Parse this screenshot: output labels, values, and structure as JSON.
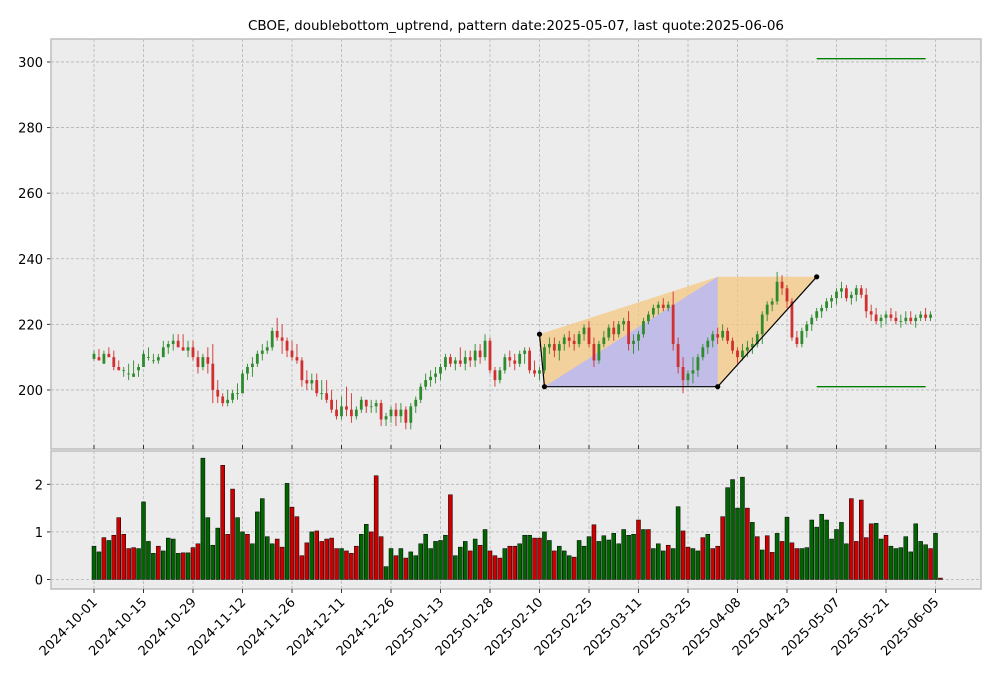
{
  "chart_data": {
    "title": "CBOE, doublebottom_uptrend, pattern date:2025-05-07, last quote:2025-06-06",
    "type": "candlestick",
    "grid": true,
    "colors": {
      "up": "#2e8b2e",
      "down": "#d03030",
      "background": "#ececec",
      "grid": "#b4b4b4",
      "target_line": "#008000",
      "pattern_line": "#000000",
      "fill_orange": "#f5c883",
      "fill_blue": "#b9b9f6",
      "vol_up": "#006400",
      "vol_down": "#cc0000"
    },
    "price_axis": {
      "range": [
        182,
        307
      ],
      "ticks": [
        200,
        220,
        240,
        260,
        280,
        300
      ]
    },
    "volume_axis": {
      "range": [
        -0.2,
        2.7
      ],
      "ticks": [
        0,
        1,
        2
      ]
    },
    "date_ticks": [
      "2024-10-01",
      "2024-10-15",
      "2024-10-29",
      "2024-11-12",
      "2024-11-26",
      "2024-12-11",
      "2024-12-26",
      "2025-01-13",
      "2025-01-28",
      "2025-02-10",
      "2025-02-25",
      "2025-03-11",
      "2025-03-25",
      "2025-04-08",
      "2025-04-23",
      "2025-05-07",
      "2025-05-21",
      "2025-06-05"
    ],
    "date_tick_index": [
      0,
      10,
      20,
      30,
      40,
      50,
      60,
      70,
      80,
      90,
      100,
      110,
      120,
      130,
      140,
      150,
      160,
      170
    ],
    "ohlc": [
      [
        209.5,
        212,
        209,
        211
      ],
      [
        210,
        212.5,
        209,
        209
      ],
      [
        208,
        212,
        208,
        211
      ],
      [
        211,
        213,
        210,
        210
      ],
      [
        210,
        212,
        206,
        207
      ],
      [
        207,
        209,
        206,
        206
      ],
      [
        206,
        207,
        204,
        206
      ],
      [
        205,
        208,
        203,
        205
      ],
      [
        204,
        209,
        204,
        205
      ],
      [
        206,
        208,
        204,
        207
      ],
      [
        207,
        212,
        207,
        211
      ],
      [
        210,
        213,
        209,
        210
      ],
      [
        209,
        211,
        208,
        209
      ],
      [
        209,
        211,
        208,
        210
      ],
      [
        210,
        215,
        210,
        213
      ],
      [
        213,
        215,
        211,
        214
      ],
      [
        214,
        217,
        212,
        215
      ],
      [
        215,
        217,
        213,
        213
      ],
      [
        213,
        217,
        212,
        212
      ],
      [
        212,
        215,
        210,
        213
      ],
      [
        213,
        215,
        209,
        210
      ],
      [
        210,
        212,
        205,
        207
      ],
      [
        207,
        211,
        206,
        210
      ],
      [
        210,
        213,
        205,
        208
      ],
      [
        208,
        214,
        196,
        200
      ],
      [
        200,
        203,
        196,
        198
      ],
      [
        198,
        199,
        195,
        196
      ],
      [
        196,
        200,
        195,
        197
      ],
      [
        197,
        200,
        196,
        199
      ],
      [
        199,
        202,
        197,
        199
      ],
      [
        199,
        206,
        199,
        205
      ],
      [
        205,
        208,
        203,
        207
      ],
      [
        207,
        210,
        204,
        208
      ],
      [
        208,
        212,
        207,
        211
      ],
      [
        211,
        214,
        209,
        212
      ],
      [
        212,
        215,
        211,
        213
      ],
      [
        213,
        219,
        212,
        218
      ],
      [
        218,
        222,
        215,
        216
      ],
      [
        216,
        220,
        211,
        215
      ],
      [
        215,
        216,
        210,
        212
      ],
      [
        212,
        215,
        209,
        210
      ],
      [
        210,
        214,
        208,
        209
      ],
      [
        209,
        210,
        201,
        203
      ],
      [
        203,
        206,
        200,
        202
      ],
      [
        202,
        205,
        200,
        203
      ],
      [
        203,
        205,
        198,
        199
      ],
      [
        199,
        203,
        197,
        199
      ],
      [
        199,
        203,
        196,
        197
      ],
      [
        197,
        200,
        193,
        194
      ],
      [
        194,
        197,
        191,
        192
      ],
      [
        192,
        198,
        191,
        195
      ],
      [
        195,
        201,
        192,
        194
      ],
      [
        194,
        199,
        190,
        192
      ],
      [
        192,
        195,
        191,
        194
      ],
      [
        194,
        198,
        193,
        197
      ],
      [
        197,
        197,
        193,
        195
      ],
      [
        195,
        197,
        193,
        195
      ],
      [
        195,
        197,
        193,
        196
      ],
      [
        196,
        197,
        189,
        191
      ],
      [
        191,
        193,
        189,
        192
      ],
      [
        192,
        195,
        190,
        194
      ],
      [
        194,
        196,
        189,
        192
      ],
      [
        192,
        196,
        190,
        194
      ],
      [
        194,
        195,
        188,
        190
      ],
      [
        190,
        196,
        188,
        195
      ],
      [
        195,
        198,
        193,
        197
      ],
      [
        197,
        202,
        196,
        201
      ],
      [
        201,
        205,
        200,
        203
      ],
      [
        203,
        206,
        201,
        204
      ],
      [
        204,
        207,
        202,
        205
      ],
      [
        205,
        208,
        203,
        207
      ],
      [
        207,
        211,
        206,
        210
      ],
      [
        210,
        211,
        207,
        208
      ],
      [
        208,
        210,
        206,
        209
      ],
      [
        209,
        213,
        207,
        208
      ],
      [
        208,
        212,
        206,
        210
      ],
      [
        210,
        212,
        207,
        209
      ],
      [
        209,
        214,
        207,
        212
      ],
      [
        212,
        214,
        208,
        210
      ],
      [
        210,
        217,
        209,
        215
      ],
      [
        215,
        216,
        205,
        206
      ],
      [
        206,
        207,
        201,
        203
      ],
      [
        203,
        207,
        202,
        206
      ],
      [
        206,
        211,
        205,
        210
      ],
      [
        210,
        212,
        207,
        209
      ],
      [
        209,
        211,
        206,
        208
      ],
      [
        208,
        212,
        207,
        211
      ],
      [
        211,
        213,
        208,
        212
      ],
      [
        212,
        213,
        205,
        206
      ],
      [
        206,
        209,
        204,
        205
      ],
      [
        205,
        207,
        203,
        206
      ],
      [
        206,
        214,
        205,
        213
      ],
      [
        213,
        216,
        211,
        214
      ],
      [
        214,
        216,
        210,
        212
      ],
      [
        212,
        215,
        209,
        214
      ],
      [
        214,
        217,
        212,
        216
      ],
      [
        216,
        218,
        213,
        215
      ],
      [
        215,
        217,
        212,
        214
      ],
      [
        214,
        218,
        213,
        217
      ],
      [
        217,
        220,
        215,
        219
      ],
      [
        219,
        221,
        213,
        214
      ],
      [
        214,
        216,
        207,
        209
      ],
      [
        209,
        215,
        208,
        214
      ],
      [
        214,
        218,
        213,
        216
      ],
      [
        216,
        220,
        215,
        219
      ],
      [
        219,
        221,
        215,
        217
      ],
      [
        217,
        221,
        216,
        220
      ],
      [
        220,
        222,
        218,
        221
      ],
      [
        221,
        224,
        212,
        214
      ],
      [
        214,
        217,
        211,
        215
      ],
      [
        215,
        218,
        212,
        217
      ],
      [
        217,
        222,
        216,
        221
      ],
      [
        221,
        224,
        220,
        223
      ],
      [
        223,
        226,
        222,
        225
      ],
      [
        225,
        227,
        223,
        226
      ],
      [
        226,
        228,
        224,
        225
      ],
      [
        225,
        227,
        224,
        226
      ],
      [
        226,
        230,
        212,
        214
      ],
      [
        214,
        216,
        205,
        207
      ],
      [
        207,
        210,
        199,
        203
      ],
      [
        203,
        206,
        201,
        205
      ],
      [
        205,
        210,
        202,
        206
      ],
      [
        206,
        211,
        204,
        210
      ],
      [
        210,
        214,
        209,
        213
      ],
      [
        213,
        216,
        211,
        215
      ],
      [
        215,
        218,
        213,
        217
      ],
      [
        217,
        219,
        214,
        216
      ],
      [
        216,
        220,
        215,
        218
      ],
      [
        218,
        219,
        214,
        215
      ],
      [
        215,
        216,
        211,
        212
      ],
      [
        212,
        213,
        208,
        210
      ],
      [
        210,
        214,
        209,
        212
      ],
      [
        212,
        215,
        210,
        213
      ],
      [
        213,
        216,
        211,
        214
      ],
      [
        214,
        218,
        213,
        217
      ],
      [
        217,
        224,
        214,
        223
      ],
      [
        223,
        227,
        221,
        226
      ],
      [
        226,
        228,
        224,
        227
      ],
      [
        227,
        236,
        226,
        233
      ],
      [
        233,
        235,
        229,
        231
      ],
      [
        231,
        232,
        225,
        227
      ],
      [
        227,
        228,
        215,
        216
      ],
      [
        216,
        218,
        213,
        214
      ],
      [
        214,
        219,
        213,
        218
      ],
      [
        218,
        221,
        216,
        220
      ],
      [
        220,
        223,
        218,
        222
      ],
      [
        222,
        225,
        221,
        224
      ],
      [
        224,
        226,
        222,
        225
      ],
      [
        225,
        228,
        224,
        227
      ],
      [
        227,
        229,
        225,
        228
      ],
      [
        228,
        231,
        226,
        230
      ],
      [
        230,
        233,
        228,
        231
      ],
      [
        231,
        232,
        227,
        228
      ],
      [
        228,
        230,
        226,
        229
      ],
      [
        229,
        232,
        227,
        231
      ],
      [
        231,
        232,
        228,
        229
      ],
      [
        229,
        231,
        222,
        224
      ],
      [
        224,
        226,
        221,
        223
      ],
      [
        223,
        225,
        220,
        221
      ],
      [
        221,
        223,
        219,
        222
      ],
      [
        222,
        224,
        220,
        223
      ],
      [
        223,
        225,
        221,
        222
      ],
      [
        222,
        224,
        220,
        221
      ],
      [
        221,
        223,
        219,
        221
      ],
      [
        221,
        224,
        220,
        222
      ],
      [
        222,
        224,
        220,
        221
      ],
      [
        221,
        223,
        219,
        222
      ],
      [
        222,
        224,
        221,
        223
      ],
      [
        223,
        225,
        221,
        222
      ],
      [
        222,
        224,
        221,
        223
      ]
    ],
    "volume": [
      0.7,
      0.58,
      0.88,
      0.82,
      0.93,
      1.3,
      0.95,
      0.65,
      0.67,
      0.65,
      1.63,
      0.8,
      0.55,
      0.7,
      0.6,
      0.87,
      0.85,
      0.55,
      0.56,
      0.56,
      0.67,
      0.75,
      2.55,
      1.3,
      0.72,
      1.08,
      2.4,
      0.95,
      1.9,
      1.3,
      1.0,
      0.95,
      0.75,
      1.42,
      1.7,
      0.9,
      0.75,
      0.85,
      0.68,
      2.02,
      1.52,
      1.32,
      0.5,
      0.77,
      1.0,
      1.02,
      0.8,
      0.85,
      0.87,
      0.65,
      0.65,
      0.6,
      0.55,
      0.7,
      0.95,
      1.16,
      1.0,
      2.18,
      0.9,
      0.27,
      0.65,
      0.5,
      0.65,
      0.45,
      0.58,
      0.5,
      0.75,
      0.95,
      0.65,
      0.8,
      0.82,
      0.93,
      1.78,
      0.5,
      0.68,
      0.8,
      0.6,
      0.85,
      0.72,
      1.05,
      0.6,
      0.5,
      0.45,
      0.65,
      0.7,
      0.7,
      0.75,
      0.93,
      0.93,
      0.87,
      0.87,
      1.0,
      0.82,
      0.6,
      0.7,
      0.6,
      0.5,
      0.47,
      0.82,
      0.7,
      0.9,
      1.15,
      0.8,
      0.92,
      0.83,
      0.97,
      0.75,
      1.05,
      0.93,
      0.95,
      1.25,
      1.05,
      1.05,
      0.65,
      0.75,
      0.6,
      0.72,
      0.65,
      1.53,
      1.02,
      0.68,
      0.65,
      0.6,
      0.88,
      0.95,
      0.65,
      0.7,
      1.32,
      1.93,
      2.1,
      1.5,
      2.15,
      1.5,
      1.2,
      0.9,
      0.62,
      0.92,
      0.57,
      0.97,
      0.8,
      1.31,
      0.77,
      0.65,
      0.65,
      0.67,
      1.25,
      1.1,
      1.37,
      1.25,
      0.85,
      1.05,
      1.2,
      0.75,
      1.7,
      0.8,
      1.67,
      0.88,
      1.17,
      1.18,
      0.85,
      0.93,
      0.7,
      0.65,
      0.67,
      0.9,
      0.58,
      1.17,
      0.8,
      0.73,
      0.65,
      0.97,
      0.03
    ],
    "volume_up": [
      true,
      true,
      false,
      true,
      false,
      false,
      false,
      false,
      false,
      true,
      true,
      true,
      true,
      false,
      true,
      true,
      true,
      true,
      false,
      true,
      false,
      false,
      true,
      true,
      true,
      true,
      false,
      false,
      false,
      true,
      true,
      false,
      true,
      true,
      true,
      true,
      true,
      false,
      false,
      true,
      false,
      false,
      false,
      false,
      true,
      false,
      false,
      false,
      false,
      false,
      true,
      false,
      false,
      false,
      true,
      true,
      false,
      false,
      false,
      true,
      true,
      false,
      true,
      false,
      true,
      true,
      true,
      true,
      true,
      true,
      true,
      true,
      false,
      true,
      true,
      true,
      false,
      true,
      false,
      true,
      false,
      false,
      false,
      true,
      false,
      false,
      true,
      true,
      true,
      false,
      false,
      true,
      true,
      false,
      true,
      true,
      true,
      false,
      true,
      true,
      true,
      false,
      true,
      true,
      true,
      true,
      true,
      true,
      true,
      true,
      false,
      true,
      false,
      true,
      true,
      true,
      false,
      true,
      true,
      false,
      false,
      true,
      true,
      false,
      true,
      false,
      false,
      false,
      true,
      true,
      true,
      true,
      false,
      true,
      false,
      true,
      false,
      false,
      true,
      false,
      true,
      false,
      false,
      true,
      true,
      true,
      true,
      true,
      true,
      true,
      true,
      true,
      true,
      false,
      false,
      false,
      false,
      false,
      true,
      true,
      false,
      true,
      true,
      true,
      true,
      true,
      true,
      true,
      true,
      false,
      true,
      false,
      true,
      true
    ],
    "pattern_points": [
      [
        90,
        217
      ],
      [
        91,
        201
      ],
      [
        126,
        201
      ],
      [
        146,
        234.5
      ]
    ],
    "fill_orange": [
      [
        90,
        217
      ],
      [
        126,
        234.5
      ],
      [
        146,
        234.5
      ],
      [
        126,
        201
      ],
      [
        91,
        201
      ]
    ],
    "fill_blue": [
      [
        91,
        201
      ],
      [
        126,
        234.5
      ],
      [
        126,
        201
      ]
    ],
    "target_lines": {
      "x_start": 146,
      "x_end": 168,
      "upper": 301,
      "lower": 201
    }
  }
}
